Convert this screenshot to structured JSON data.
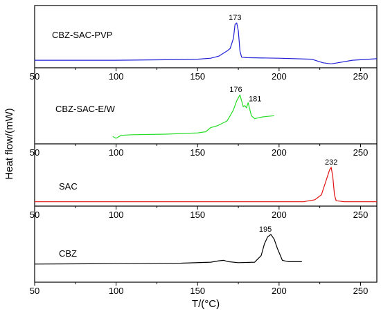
{
  "chart_data": {
    "type": "line",
    "xlabel": "T/(°C)",
    "ylabel": "Heat flow/(mW)",
    "xlim": [
      50,
      260
    ],
    "x_ticks": [
      50,
      100,
      150,
      200,
      250
    ],
    "grid": false,
    "legend": "none",
    "panels": [
      {
        "name": "CBZ-SAC-PVP",
        "color": "#1f1fd6",
        "ylim": [
          0,
          1
        ],
        "x": [
          50,
          100,
          130,
          150,
          158,
          163,
          166,
          168,
          170,
          172,
          173,
          174,
          175,
          176,
          177,
          180,
          200,
          220,
          227,
          232,
          236,
          245,
          255,
          260
        ],
        "y": [
          0.12,
          0.12,
          0.13,
          0.14,
          0.16,
          0.2,
          0.26,
          0.3,
          0.35,
          0.55,
          0.82,
          0.85,
          0.7,
          0.3,
          0.18,
          0.17,
          0.16,
          0.14,
          0.07,
          0.05,
          0.07,
          0.12,
          0.14,
          0.15
        ],
        "peaks": [
          {
            "x": 173,
            "y": 0.85,
            "label": "173"
          }
        ]
      },
      {
        "name": "CBZ-SAC-E/W",
        "color": "#22dd22",
        "ylim": [
          0,
          1
        ],
        "x": [
          98,
          100,
          103,
          110,
          130,
          150,
          155,
          158,
          162,
          165,
          168,
          170,
          172,
          174,
          176,
          178,
          179,
          180,
          181,
          183,
          185,
          190,
          197
        ],
        "y": [
          0.1,
          0.07,
          0.12,
          0.13,
          0.14,
          0.16,
          0.18,
          0.25,
          0.28,
          0.32,
          0.36,
          0.45,
          0.55,
          0.7,
          0.8,
          0.6,
          0.62,
          0.58,
          0.67,
          0.45,
          0.4,
          0.43,
          0.45
        ],
        "peaks": [
          {
            "x": 176,
            "y": 0.8,
            "label": "176"
          },
          {
            "x": 181,
            "y": 0.67,
            "label": "181"
          }
        ]
      },
      {
        "name": "SAC",
        "color": "#e01010",
        "ylim": [
          0,
          1
        ],
        "x": [
          50,
          100,
          150,
          200,
          215,
          222,
          226,
          229,
          231,
          232,
          233,
          234,
          235,
          240,
          260
        ],
        "y": [
          0.06,
          0.06,
          0.06,
          0.06,
          0.06,
          0.1,
          0.2,
          0.5,
          0.7,
          0.75,
          0.55,
          0.2,
          0.08,
          0.06,
          0.06
        ],
        "peaks": [
          {
            "x": 232,
            "y": 0.75,
            "label": "232"
          }
        ]
      },
      {
        "name": "CBZ",
        "color": "#000000",
        "ylim": [
          0,
          1
        ],
        "x": [
          50,
          100,
          140,
          158,
          163,
          166,
          169,
          175,
          185,
          189,
          191,
          193,
          195,
          197,
          199,
          202,
          206,
          214
        ],
        "y": [
          0.12,
          0.13,
          0.14,
          0.16,
          0.19,
          0.2,
          0.17,
          0.15,
          0.16,
          0.3,
          0.55,
          0.7,
          0.75,
          0.65,
          0.45,
          0.2,
          0.17,
          0.17
        ],
        "peaks": [
          {
            "x": 195,
            "y": 0.75,
            "label": "195"
          }
        ]
      }
    ]
  }
}
